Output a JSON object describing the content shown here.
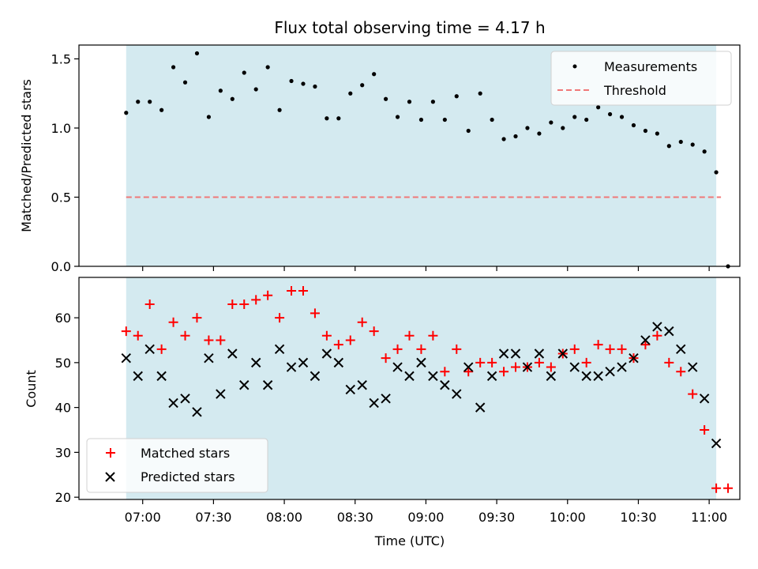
{
  "chart_data": [
    {
      "panel": "top",
      "type": "scatter",
      "title": "Flux total observing time = 4.17 h",
      "ylabel": "Matched/Predicted stars",
      "ylim": [
        0,
        1.6
      ],
      "yticks": [
        0.0,
        0.5,
        1.0,
        1.5
      ],
      "ytick_labels": [
        "0.0",
        "0.5",
        "1.0",
        "1.5"
      ],
      "observing_window": {
        "start": "06:53",
        "end": "11:03",
        "color": "#d4eaf0"
      },
      "legend": {
        "placement": "top-right"
      },
      "series": [
        {
          "name": "Measurements",
          "marker": "dot",
          "color": "#000000",
          "x": [
            "06:53",
            "06:58",
            "07:03",
            "07:08",
            "07:13",
            "07:18",
            "07:23",
            "07:28",
            "07:33",
            "07:38",
            "07:43",
            "07:48",
            "07:53",
            "07:58",
            "08:03",
            "08:08",
            "08:13",
            "08:18",
            "08:23",
            "08:28",
            "08:33",
            "08:38",
            "08:43",
            "08:48",
            "08:53",
            "08:58",
            "09:03",
            "09:08",
            "09:13",
            "09:18",
            "09:23",
            "09:28",
            "09:33",
            "09:38",
            "09:43",
            "09:48",
            "09:53",
            "09:58",
            "10:03",
            "10:08",
            "10:13",
            "10:18",
            "10:23",
            "10:28",
            "10:33",
            "10:38",
            "10:43",
            "10:48",
            "10:53",
            "10:58",
            "11:03",
            "11:08"
          ],
          "y": [
            1.11,
            1.19,
            1.19,
            1.13,
            1.44,
            1.33,
            1.54,
            1.08,
            1.27,
            1.21,
            1.4,
            1.28,
            1.44,
            1.13,
            1.34,
            1.32,
            1.3,
            1.07,
            1.07,
            1.25,
            1.31,
            1.39,
            1.21,
            1.08,
            1.19,
            1.06,
            1.19,
            1.06,
            1.23,
            0.98,
            1.25,
            1.06,
            0.92,
            0.94,
            1.0,
            0.96,
            1.04,
            1.0,
            1.08,
            1.06,
            1.15,
            1.1,
            1.08,
            1.02,
            0.98,
            0.96,
            0.87,
            0.9,
            0.88,
            0.83,
            0.68,
            0.0
          ]
        },
        {
          "name": "Threshold",
          "line": "dashed",
          "color": "#f07878",
          "x": [
            "06:53",
            "11:05"
          ],
          "y": [
            0.5,
            0.5
          ]
        }
      ]
    },
    {
      "panel": "bottom",
      "type": "scatter",
      "xlabel": "Time (UTC)",
      "ylabel": "Count",
      "ylim": [
        19.5,
        69
      ],
      "yticks": [
        20,
        30,
        40,
        50,
        60
      ],
      "ytick_labels": [
        "20",
        "30",
        "40",
        "50",
        "60"
      ],
      "xlim": [
        "06:33",
        "11:13"
      ],
      "xticks": [
        "07:00",
        "07:30",
        "08:00",
        "08:30",
        "09:00",
        "09:30",
        "10:00",
        "10:30",
        "11:00"
      ],
      "xtick_labels": [
        "07:00",
        "07:30",
        "08:00",
        "08:30",
        "09:00",
        "09:30",
        "10:00",
        "10:30",
        "11:00"
      ],
      "observing_window": {
        "start": "06:53",
        "end": "11:03",
        "color": "#d4eaf0"
      },
      "legend": {
        "placement": "bottom-left"
      },
      "series": [
        {
          "name": "Matched stars",
          "marker": "plus",
          "color": "#ff0000",
          "x": [
            "06:53",
            "06:58",
            "07:03",
            "07:08",
            "07:13",
            "07:18",
            "07:23",
            "07:28",
            "07:33",
            "07:38",
            "07:43",
            "07:48",
            "07:53",
            "07:58",
            "08:03",
            "08:08",
            "08:13",
            "08:18",
            "08:23",
            "08:28",
            "08:33",
            "08:38",
            "08:43",
            "08:48",
            "08:53",
            "08:58",
            "09:03",
            "09:08",
            "09:13",
            "09:18",
            "09:23",
            "09:28",
            "09:33",
            "09:38",
            "09:43",
            "09:48",
            "09:53",
            "09:58",
            "10:03",
            "10:08",
            "10:13",
            "10:18",
            "10:23",
            "10:28",
            "10:33",
            "10:38",
            "10:43",
            "10:48",
            "10:53",
            "10:58",
            "11:03",
            "11:08"
          ],
          "y": [
            57,
            56,
            63,
            53,
            59,
            56,
            60,
            55,
            55,
            63,
            63,
            64,
            65,
            60,
            66,
            66,
            61,
            56,
            54,
            55,
            59,
            57,
            51,
            53,
            56,
            53,
            56,
            48,
            53,
            48,
            50,
            50,
            48,
            49,
            49,
            50,
            49,
            52,
            53,
            50,
            54,
            53,
            53,
            51,
            54,
            56,
            50,
            48,
            43,
            35,
            22,
            22
          ]
        },
        {
          "name": "Predicted stars",
          "marker": "x",
          "color": "#000000",
          "x": [
            "06:53",
            "06:58",
            "07:03",
            "07:08",
            "07:13",
            "07:18",
            "07:23",
            "07:28",
            "07:33",
            "07:38",
            "07:43",
            "07:48",
            "07:53",
            "07:58",
            "08:03",
            "08:08",
            "08:13",
            "08:18",
            "08:23",
            "08:28",
            "08:33",
            "08:38",
            "08:43",
            "08:48",
            "08:53",
            "08:58",
            "09:03",
            "09:08",
            "09:13",
            "09:18",
            "09:23",
            "09:28",
            "09:33",
            "09:38",
            "09:43",
            "09:48",
            "09:53",
            "09:58",
            "10:03",
            "10:08",
            "10:13",
            "10:18",
            "10:23",
            "10:28",
            "10:33",
            "10:38",
            "10:43",
            "10:48",
            "10:53",
            "10:58",
            "11:03"
          ],
          "y": [
            51,
            47,
            53,
            47,
            41,
            42,
            39,
            51,
            43,
            52,
            45,
            50,
            45,
            53,
            49,
            50,
            47,
            52,
            50,
            44,
            45,
            41,
            42,
            49,
            47,
            50,
            47,
            45,
            43,
            49,
            40,
            47,
            52,
            52,
            49,
            52,
            47,
            52,
            49,
            47,
            47,
            48,
            49,
            51,
            55,
            58,
            57,
            53,
            49,
            42,
            32
          ]
        }
      ]
    }
  ]
}
